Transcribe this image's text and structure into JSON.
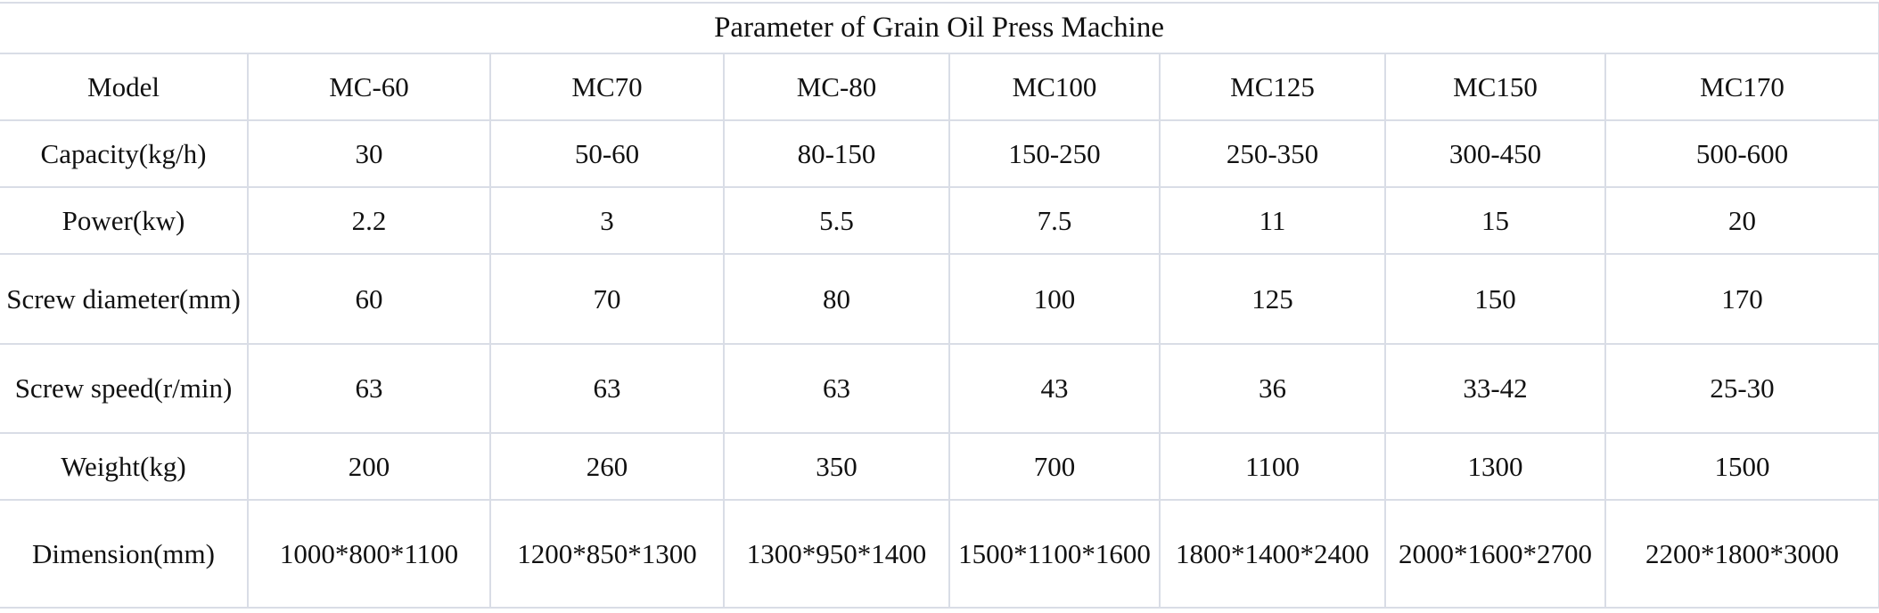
{
  "title": "Parameter of Grain Oil Press Machine",
  "table": {
    "header": [
      "Model",
      "MC-60",
      "MC70",
      "MC-80",
      "MC100",
      "MC125",
      "MC150",
      "MC170"
    ],
    "rows": [
      [
        "Capacity(kg/h)",
        "30",
        "50-60",
        "80-150",
        "150-250",
        "250-350",
        "300-450",
        "500-600"
      ],
      [
        "Power(kw)",
        "2.2",
        "3",
        "5.5",
        "7.5",
        "11",
        "15",
        "20"
      ],
      [
        "Screw diameter(mm)",
        "60",
        "70",
        "80",
        "100",
        "125",
        "150",
        "170"
      ],
      [
        "Screw speed(r/min)",
        "63",
        "63",
        "63",
        "43",
        "36",
        "33-42",
        "25-30"
      ],
      [
        "Weight(kg)",
        "200",
        "260",
        "350",
        "700",
        "1100",
        "1300",
        "1500"
      ],
      [
        "Dimension(mm)",
        "1000*800*1100",
        "1200*850*1300",
        "1300*950*1400",
        "1500*1100*1600",
        "1800*1400*2400",
        "2000*1600*2700",
        "2200*1800*3000"
      ]
    ]
  }
}
